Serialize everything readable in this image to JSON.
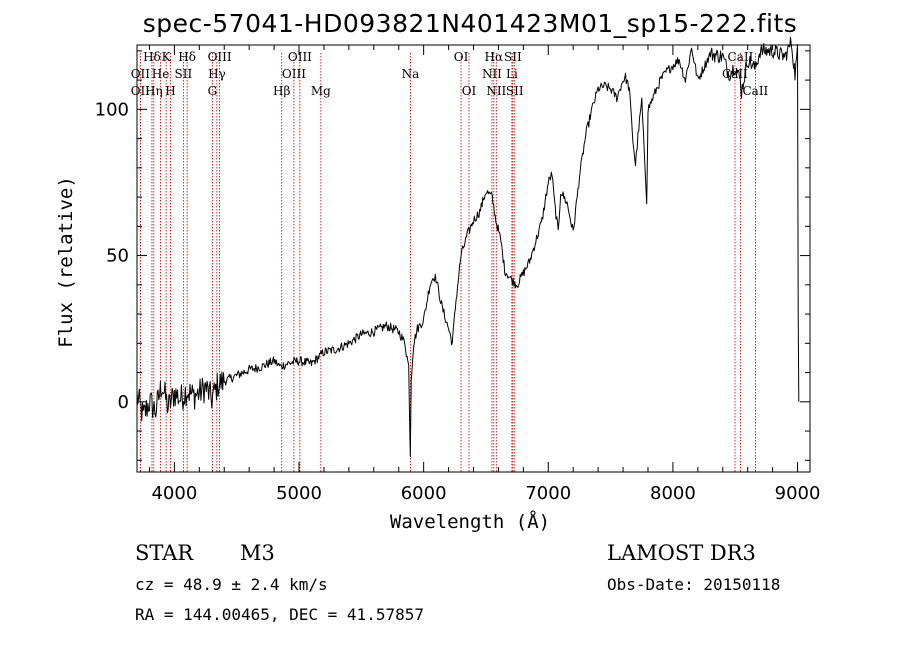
{
  "chart_data": {
    "type": "line",
    "title": "spec-57041-HD093821N401423M01_sp15-222.fits",
    "xlabel": "Wavelength (Å)",
    "ylabel": "Flux (relative)",
    "xlim": [
      3700,
      9100
    ],
    "ylim": [
      -24,
      122
    ],
    "x_ticks": [
      4000,
      5000,
      6000,
      7000,
      8000,
      9000
    ],
    "y_ticks": [
      0,
      50,
      100
    ],
    "grid": false,
    "series": [
      {
        "name": "spectrum",
        "x": [
          3700,
          3750,
          3800,
          3850,
          3900,
          3950,
          4000,
          4050,
          4100,
          4150,
          4200,
          4250,
          4300,
          4350,
          4400,
          4500,
          4600,
          4700,
          4800,
          4850,
          4900,
          5000,
          5100,
          5200,
          5300,
          5400,
          5500,
          5600,
          5700,
          5800,
          5850,
          5880,
          5893,
          5900,
          5920,
          5950,
          6000,
          6050,
          6080,
          6100,
          6150,
          6200,
          6230,
          6260,
          6300,
          6350,
          6400,
          6450,
          6500,
          6550,
          6580,
          6620,
          6650,
          6700,
          6750,
          6800,
          6850,
          6900,
          6950,
          7000,
          7030,
          7050,
          7080,
          7100,
          7150,
          7200,
          7250,
          7300,
          7350,
          7400,
          7450,
          7500,
          7550,
          7600,
          7620,
          7650,
          7680,
          7700,
          7720,
          7750,
          7770,
          7790,
          7800,
          7850,
          7900,
          7950,
          8000,
          8050,
          8100,
          8150,
          8200,
          8300,
          8400,
          8450,
          8500,
          8540,
          8550,
          8600,
          8660,
          8700,
          8800,
          8900,
          8950,
          8980,
          9000,
          9005,
          9010
        ],
        "y": [
          2,
          -5,
          0,
          -3,
          6,
          -2,
          3,
          1,
          4,
          2,
          3,
          5,
          1,
          6,
          7,
          9,
          11,
          12,
          14,
          12,
          13,
          14,
          13,
          17,
          18,
          20,
          23,
          24,
          26,
          24,
          20,
          12,
          -18,
          8,
          20,
          25,
          28,
          40,
          43,
          42,
          32,
          25,
          20,
          35,
          50,
          57,
          62,
          65,
          72,
          70,
          62,
          55,
          45,
          42,
          40,
          44,
          48,
          55,
          62,
          75,
          78,
          68,
          58,
          72,
          68,
          58,
          77,
          91,
          100,
          107,
          108,
          107,
          104,
          110,
          111,
          107,
          89,
          81,
          91,
          103,
          85,
          69,
          100,
          105,
          110,
          113,
          115,
          117,
          110,
          121,
          110,
          119,
          118,
          112,
          115,
          110,
          106,
          117,
          114,
          120,
          120,
          118,
          123,
          112,
          120,
          30,
          0
        ]
      }
    ],
    "spectral_lines": [
      {
        "label": "Hδ",
        "x": 3820,
        "row": 0
      },
      {
        "label": "OII",
        "x": 3727,
        "row": 1
      },
      {
        "label": "OII",
        "x": 3727,
        "row": 2
      },
      {
        "label": "He",
        "x": 3889,
        "row": 1
      },
      {
        "label": "Hη",
        "x": 3835,
        "row": 2
      },
      {
        "label": "K",
        "x": 3934,
        "row": 0
      },
      {
        "label": "H",
        "x": 3969,
        "row": 2
      },
      {
        "label": "SII",
        "x": 4072,
        "row": 1
      },
      {
        "label": "Hδ",
        "x": 4102,
        "row": 0
      },
      {
        "label": "OIII",
        "x": 4363,
        "row": 0
      },
      {
        "label": "Hγ",
        "x": 4341,
        "row": 1
      },
      {
        "label": "G",
        "x": 4305,
        "row": 2
      },
      {
        "label": "Hβ",
        "x": 4861,
        "row": 2
      },
      {
        "label": "OIII",
        "x": 5007,
        "row": 0
      },
      {
        "label": "OIII",
        "x": 4959,
        "row": 1
      },
      {
        "label": "Mg",
        "x": 5175,
        "row": 2
      },
      {
        "label": "Na",
        "x": 5894,
        "row": 1
      },
      {
        "label": "OI",
        "x": 6300,
        "row": 0
      },
      {
        "label": "OI",
        "x": 6364,
        "row": 2
      },
      {
        "label": "Hα",
        "x": 6563,
        "row": 0
      },
      {
        "label": "NII",
        "x": 6548,
        "row": 1
      },
      {
        "label": "NII",
        "x": 6583,
        "row": 2
      },
      {
        "label": "SII",
        "x": 6716,
        "row": 0
      },
      {
        "label": "Li",
        "x": 6708,
        "row": 1
      },
      {
        "label": "SII",
        "x": 6731,
        "row": 2
      },
      {
        "label": "CaII",
        "x": 8542,
        "row": 0
      },
      {
        "label": "CaII",
        "x": 8498,
        "row": 1
      },
      {
        "label": "CaII",
        "x": 8662,
        "row": 2
      }
    ]
  },
  "footer": {
    "class_type": "STAR",
    "subclass": "M3",
    "survey": "LAMOST DR3",
    "redshift_text": "cz = 48.9 ± 2.4 km/s",
    "obs_date_text": "Obs-Date: 20150118",
    "coords_text": "RA = 144.00465, DEC =  41.57857"
  },
  "colors": {
    "spectrum": "#000000",
    "line_markers": "#c00000",
    "axes": "#000000",
    "background": "#ffffff"
  }
}
